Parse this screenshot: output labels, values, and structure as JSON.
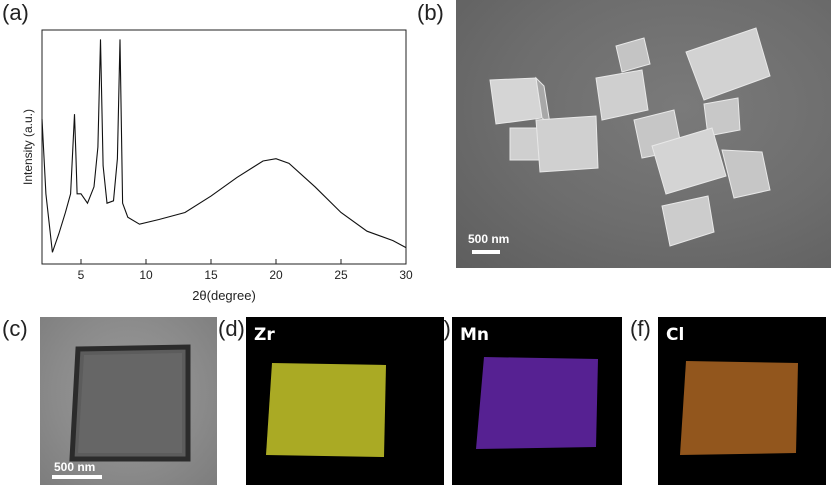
{
  "panels": {
    "a": "(a)",
    "b": "(b)",
    "c": "(c)",
    "d": "(d)",
    "e": "(e)",
    "f": "(f)"
  },
  "xrd": {
    "ylabel": "Intensity (a.u.)",
    "xlabel": "2θ(degree)",
    "xticks": [
      "5",
      "10",
      "15",
      "20",
      "25",
      "30"
    ]
  },
  "chart_data": {
    "type": "line",
    "xlabel": "2θ(degree)",
    "ylabel": "Intensity (a.u.)",
    "xlim": [
      2,
      30
    ],
    "ylim": [
      0,
      1
    ],
    "x_ticks": [
      5,
      10,
      15,
      20,
      25,
      30
    ],
    "y_ticks": [],
    "grid": false,
    "legend": "none",
    "series": [
      {
        "x": [
          2.0,
          2.3,
          2.8,
          3.3,
          3.8,
          4.2,
          4.5,
          4.6,
          4.7,
          5.0,
          5.5,
          6.0,
          6.3,
          6.5,
          6.7,
          7.0,
          7.5,
          7.8,
          8.0,
          8.2,
          8.6,
          9.5,
          11.0,
          13.0,
          15.0,
          17.0,
          19.0,
          20.0,
          21.0,
          23.0,
          25.0,
          27.0,
          29.0,
          30.0
        ],
        "values": [
          0.62,
          0.3,
          0.05,
          0.13,
          0.22,
          0.3,
          0.64,
          0.48,
          0.3,
          0.3,
          0.26,
          0.33,
          0.5,
          0.96,
          0.42,
          0.26,
          0.27,
          0.45,
          0.96,
          0.26,
          0.2,
          0.17,
          0.19,
          0.22,
          0.29,
          0.37,
          0.44,
          0.45,
          0.43,
          0.33,
          0.22,
          0.14,
          0.1,
          0.07
        ]
      }
    ]
  },
  "sem": {
    "scale": "500 nm"
  },
  "tem": {
    "scale": "500 nm"
  },
  "eds": [
    {
      "element": "Zr",
      "color": "#c8c82a"
    },
    {
      "element": "Mn",
      "color": "#7a2fd0"
    },
    {
      "element": "Cl",
      "color": "#d07a2a"
    }
  ]
}
